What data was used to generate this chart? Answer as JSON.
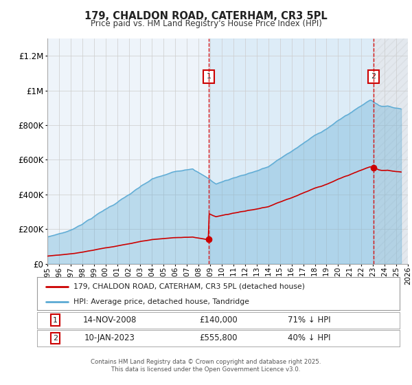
{
  "title": "179, CHALDON ROAD, CATERHAM, CR3 5PL",
  "subtitle": "Price paid vs. HM Land Registry's House Price Index (HPI)",
  "legend_line1": "179, CHALDON ROAD, CATERHAM, CR3 5PL (detached house)",
  "legend_line2": "HPI: Average price, detached house, Tandridge",
  "footnote1": "Contains HM Land Registry data © Crown copyright and database right 2025.",
  "footnote2": "This data is licensed under the Open Government Licence v3.0.",
  "marker1_date": "14-NOV-2008",
  "marker1_price": "£140,000",
  "marker1_hpi": "71% ↓ HPI",
  "marker2_date": "10-JAN-2023",
  "marker2_price": "£555,800",
  "marker2_hpi": "40% ↓ HPI",
  "sale1_year": 2008.87,
  "sale1_value": 140000,
  "sale2_year": 2023.03,
  "sale2_value": 555800,
  "hpi_color": "#5baad4",
  "hpi_fill_color": "#d6eaf8",
  "price_color": "#cc0000",
  "background_plot": "#eef4fa",
  "background_fig": "#ffffff",
  "grid_color": "#cccccc",
  "vline_color": "#dd0000",
  "xmin": 1995,
  "xmax": 2026,
  "ymin": 0,
  "ymax": 1300000,
  "yticks": [
    0,
    200000,
    400000,
    600000,
    800000,
    1000000,
    1200000
  ]
}
